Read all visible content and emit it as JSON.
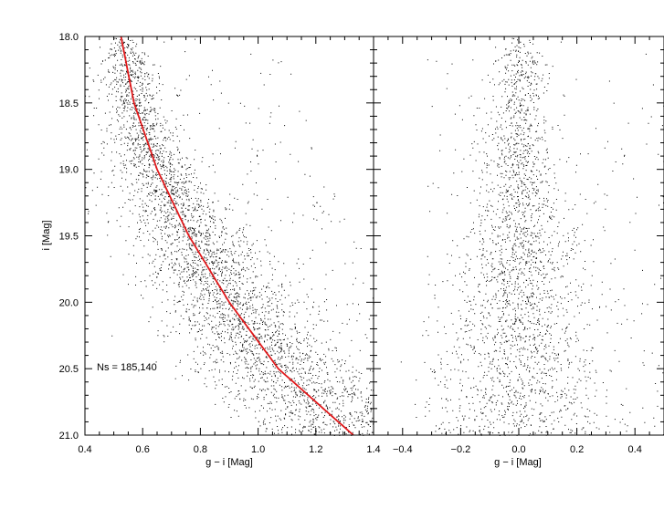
{
  "chart_data": [
    {
      "type": "scatter",
      "panel": "left",
      "xlabel": "g − i [Mag]",
      "ylabel": "i [Mag]",
      "xlim": [
        0.4,
        1.4
      ],
      "ylim": [
        21.0,
        18.0
      ],
      "y_inverted": true,
      "xticks": [
        "0.4",
        "0.6",
        "0.8",
        "1.0",
        "1.2",
        "1.4"
      ],
      "yticks": [
        "18.0",
        "18.5",
        "19.0",
        "19.5",
        "20.0",
        "20.5",
        "21.0"
      ],
      "annotation": "Ns = 185,140",
      "fit_curve": {
        "color": "#e0191b",
        "points": [
          {
            "x": 0.525,
            "y": 18.0
          },
          {
            "x": 0.57,
            "y": 18.5
          },
          {
            "x": 0.65,
            "y": 19.0
          },
          {
            "x": 0.76,
            "y": 19.5
          },
          {
            "x": 0.9,
            "y": 20.0
          },
          {
            "x": 1.07,
            "y": 20.5
          },
          {
            "x": 1.33,
            "y": 21.0
          }
        ]
      },
      "density_profile": {
        "note_y": [
          18.0,
          19.0,
          20.0,
          21.0
        ],
        "spread_x": [
          0.03,
          0.07,
          0.11,
          0.16
        ]
      },
      "point_color": "#000000"
    },
    {
      "type": "scatter",
      "panel": "right",
      "xlabel": "g − i [Mag]",
      "xlim": [
        -0.5,
        0.5
      ],
      "ylim": [
        21.0,
        18.0
      ],
      "y_inverted": true,
      "xticks": [
        "−0.4",
        "−0.2",
        "0.0",
        "0.2",
        "0.4"
      ],
      "center_x": 0.0,
      "density_profile": {
        "note_y": [
          18.0,
          19.0,
          20.0,
          21.0
        ],
        "spread_x": [
          0.03,
          0.07,
          0.11,
          0.16
        ]
      },
      "point_color": "#000000"
    }
  ]
}
